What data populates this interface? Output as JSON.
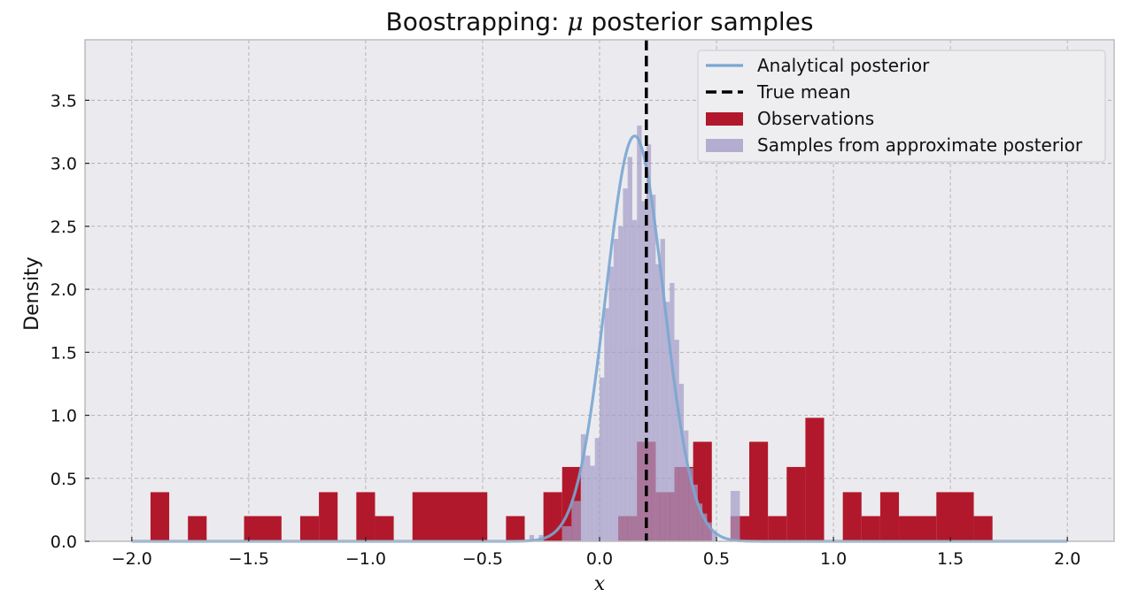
{
  "chart_data": {
    "type": "histogram",
    "title_prefix": "Boostrapping: ",
    "title_symbol": "μ",
    "title_suffix": " posterior samples",
    "xlabel": "x",
    "ylabel": "Density",
    "xlim": [
      -2.2,
      2.2
    ],
    "ylim": [
      0.0,
      3.98
    ],
    "xticks": [
      -2.0,
      -1.5,
      -1.0,
      -0.5,
      0.0,
      0.5,
      1.0,
      1.5,
      2.0
    ],
    "xtick_labels": [
      "−2.0",
      "−1.5",
      "−1.0",
      "−0.5",
      "0.0",
      "0.5",
      "1.0",
      "1.5",
      "2.0"
    ],
    "yticks": [
      0.0,
      0.5,
      1.0,
      1.5,
      2.0,
      2.5,
      3.0,
      3.5
    ],
    "ytick_labels": [
      "0.0",
      "0.5",
      "1.0",
      "1.5",
      "2.0",
      "2.5",
      "3.0",
      "3.5"
    ],
    "grid": true,
    "legend_position": "top-right",
    "colors": {
      "observations": "#b2182b",
      "samples": "#a59cc7",
      "posterior": "#7aa6d2",
      "true_mean": "#000000"
    },
    "series": [
      {
        "name": "Analytical posterior",
        "kind": "line",
        "mean": 0.15,
        "sd": 0.124
      },
      {
        "name": "True mean",
        "kind": "vline",
        "x": 0.2
      },
      {
        "name": "Observations",
        "kind": "histogram",
        "bins": [
          {
            "x0": -1.92,
            "x1": -1.84,
            "y": 0.39
          },
          {
            "x0": -1.76,
            "x1": -1.68,
            "y": 0.2
          },
          {
            "x0": -1.52,
            "x1": -1.36,
            "y": 0.2
          },
          {
            "x0": -1.28,
            "x1": -1.2,
            "y": 0.2
          },
          {
            "x0": -1.2,
            "x1": -1.12,
            "y": 0.39
          },
          {
            "x0": -1.04,
            "x1": -0.96,
            "y": 0.39
          },
          {
            "x0": -0.96,
            "x1": -0.88,
            "y": 0.2
          },
          {
            "x0": -0.8,
            "x1": -0.48,
            "y": 0.39
          },
          {
            "x0": -0.4,
            "x1": -0.32,
            "y": 0.2
          },
          {
            "x0": -0.24,
            "x1": -0.16,
            "y": 0.39
          },
          {
            "x0": -0.16,
            "x1": -0.08,
            "y": 0.59
          },
          {
            "x0": 0.08,
            "x1": 0.16,
            "y": 0.2
          },
          {
            "x0": 0.16,
            "x1": 0.24,
            "y": 0.79
          },
          {
            "x0": 0.24,
            "x1": 0.32,
            "y": 0.39
          },
          {
            "x0": 0.32,
            "x1": 0.4,
            "y": 0.59
          },
          {
            "x0": 0.4,
            "x1": 0.48,
            "y": 0.79
          },
          {
            "x0": 0.56,
            "x1": 0.64,
            "y": 0.2
          },
          {
            "x0": 0.64,
            "x1": 0.72,
            "y": 0.79
          },
          {
            "x0": 0.72,
            "x1": 0.8,
            "y": 0.2
          },
          {
            "x0": 0.8,
            "x1": 0.88,
            "y": 0.59
          },
          {
            "x0": 0.88,
            "x1": 0.96,
            "y": 0.98
          },
          {
            "x0": 1.04,
            "x1": 1.12,
            "y": 0.39
          },
          {
            "x0": 1.12,
            "x1": 1.2,
            "y": 0.2
          },
          {
            "x0": 1.2,
            "x1": 1.28,
            "y": 0.39
          },
          {
            "x0": 1.28,
            "x1": 1.44,
            "y": 0.2
          },
          {
            "x0": 1.44,
            "x1": 1.6,
            "y": 0.39
          },
          {
            "x0": 1.6,
            "x1": 1.68,
            "y": 0.2
          }
        ]
      },
      {
        "name": "Samples from approximate posterior",
        "kind": "histogram",
        "bins": [
          {
            "x0": -0.3,
            "x1": -0.28,
            "y": 0.05
          },
          {
            "x0": -0.26,
            "x1": -0.24,
            "y": 0.05
          },
          {
            "x0": -0.16,
            "x1": -0.12,
            "y": 0.12
          },
          {
            "x0": -0.12,
            "x1": -0.08,
            "y": 0.32
          },
          {
            "x0": -0.08,
            "x1": -0.06,
            "y": 0.85
          },
          {
            "x0": -0.06,
            "x1": -0.04,
            "y": 0.68
          },
          {
            "x0": -0.04,
            "x1": -0.02,
            "y": 0.6
          },
          {
            "x0": -0.02,
            "x1": 0.0,
            "y": 0.82
          },
          {
            "x0": 0.0,
            "x1": 0.02,
            "y": 1.3
          },
          {
            "x0": 0.02,
            "x1": 0.04,
            "y": 1.85
          },
          {
            "x0": 0.04,
            "x1": 0.06,
            "y": 2.18
          },
          {
            "x0": 0.06,
            "x1": 0.08,
            "y": 2.4
          },
          {
            "x0": 0.08,
            "x1": 0.1,
            "y": 2.5
          },
          {
            "x0": 0.1,
            "x1": 0.12,
            "y": 2.8
          },
          {
            "x0": 0.12,
            "x1": 0.14,
            "y": 3.05
          },
          {
            "x0": 0.14,
            "x1": 0.16,
            "y": 2.55
          },
          {
            "x0": 0.16,
            "x1": 0.18,
            "y": 3.3
          },
          {
            "x0": 0.18,
            "x1": 0.2,
            "y": 2.7
          },
          {
            "x0": 0.2,
            "x1": 0.22,
            "y": 3.15
          },
          {
            "x0": 0.22,
            "x1": 0.24,
            "y": 2.75
          },
          {
            "x0": 0.24,
            "x1": 0.26,
            "y": 2.2
          },
          {
            "x0": 0.26,
            "x1": 0.28,
            "y": 2.4
          },
          {
            "x0": 0.28,
            "x1": 0.3,
            "y": 1.9
          },
          {
            "x0": 0.3,
            "x1": 0.32,
            "y": 2.05
          },
          {
            "x0": 0.32,
            "x1": 0.34,
            "y": 1.6
          },
          {
            "x0": 0.34,
            "x1": 0.36,
            "y": 1.25
          },
          {
            "x0": 0.36,
            "x1": 0.38,
            "y": 0.88
          },
          {
            "x0": 0.38,
            "x1": 0.4,
            "y": 0.58
          },
          {
            "x0": 0.4,
            "x1": 0.42,
            "y": 0.45
          },
          {
            "x0": 0.42,
            "x1": 0.44,
            "y": 0.3
          },
          {
            "x0": 0.44,
            "x1": 0.46,
            "y": 0.22
          },
          {
            "x0": 0.46,
            "x1": 0.48,
            "y": 0.15
          },
          {
            "x0": 0.48,
            "x1": 0.5,
            "y": 0.08
          },
          {
            "x0": 0.56,
            "x1": 0.6,
            "y": 0.4
          }
        ]
      }
    ]
  }
}
